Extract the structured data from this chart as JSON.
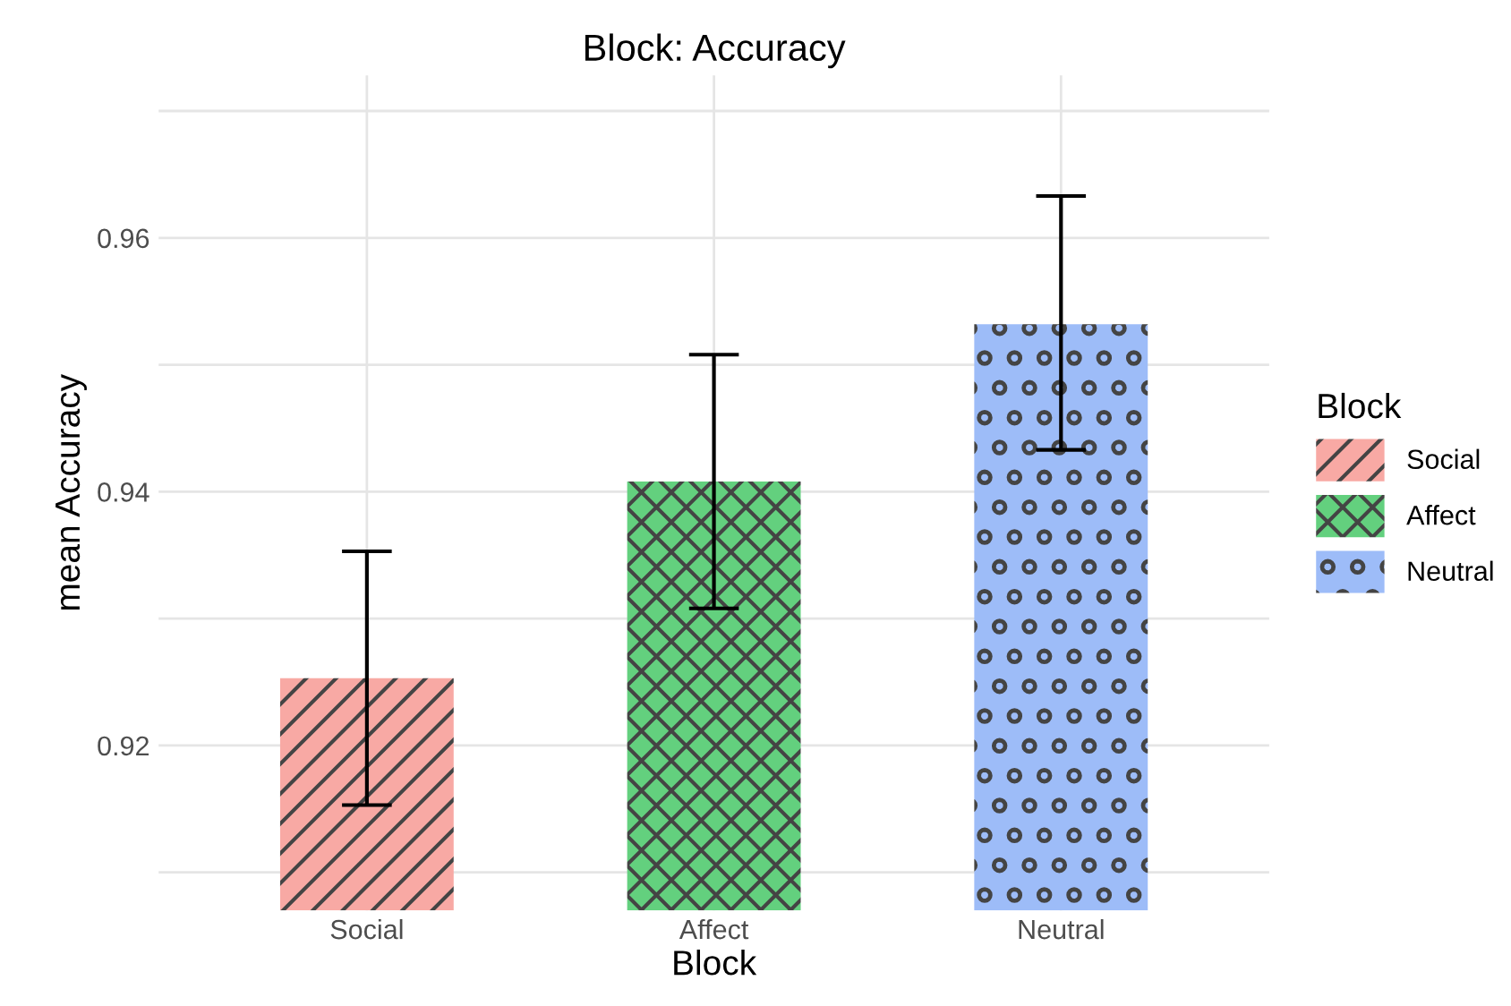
{
  "chart_data": {
    "type": "bar",
    "title": "Block: Accuracy",
    "xlabel": "Block",
    "ylabel": "mean Accuracy",
    "legend_title": "Block",
    "categories": [
      "Social",
      "Affect",
      "Neutral"
    ],
    "series": [
      {
        "name": "Social",
        "color": "#f8a9a4",
        "values": [
          0.9253,
          null,
          null
        ],
        "errors": [
          [
            0.9153,
            0.9353
          ],
          null,
          null
        ]
      },
      {
        "name": "Affect",
        "color": "#63d07e",
        "values": [
          null,
          0.9408,
          null
        ],
        "errors": [
          null,
          [
            0.9308,
            0.9508
          ],
          null
        ]
      },
      {
        "name": "Neutral",
        "color": "#9dbcf8",
        "values": [
          null,
          null,
          0.9532
        ],
        "errors": [
          null,
          null,
          [
            0.9433,
            0.9633
          ]
        ]
      }
    ],
    "ylim": [
      0.907,
      0.9728
    ],
    "yticks": [
      {
        "value": 0.91,
        "label": null
      },
      {
        "value": 0.92,
        "label": "0.92"
      },
      {
        "value": 0.93,
        "label": null
      },
      {
        "value": 0.94,
        "label": "0.94"
      },
      {
        "value": 0.95,
        "label": null
      },
      {
        "value": 0.96,
        "label": "0.96"
      },
      {
        "value": 0.97,
        "label": null
      }
    ],
    "grid": true,
    "legend": "right"
  }
}
